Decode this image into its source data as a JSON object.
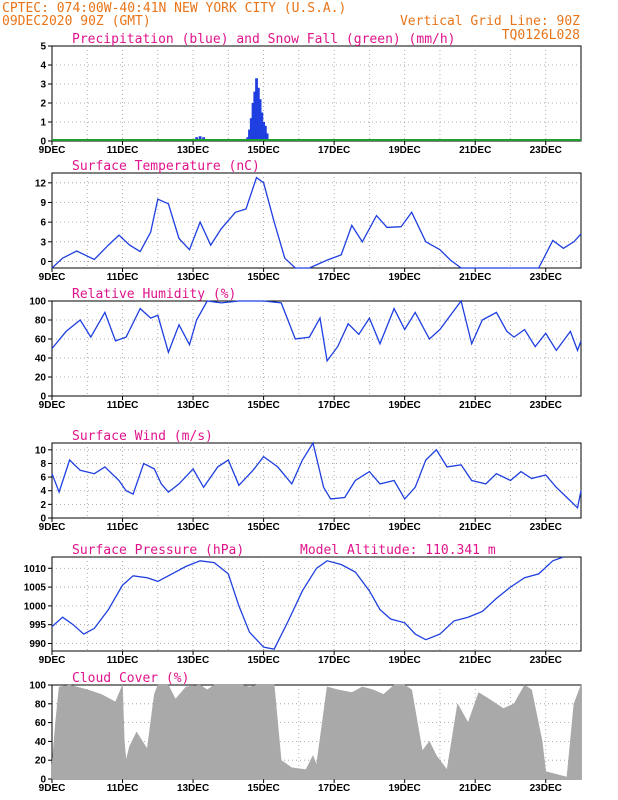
{
  "header": {
    "line1": "CPTEC:  074:00W-40:41N  NEW YORK CITY (U.S.A.)",
    "line2_left": "09DEC2020 90Z (GMT)",
    "line2_right": "Vertical Grid Line: 90Z",
    "line3_right": "TQ0126L028"
  },
  "x_dates": [
    "9DEC",
    "11DEC",
    "13DEC",
    "15DEC",
    "17DEC",
    "19DEC",
    "21DEC",
    "23DEC"
  ],
  "colors": {
    "header": "#e8751a",
    "title": "#e0148c",
    "line": "#1f3fe0",
    "snow": "#1f9f2f",
    "cloud": "#a9a9a9"
  },
  "chart_data": [
    {
      "type": "bar",
      "title": "Precipitation (blue) and Snow Fall (green) (mm/h)",
      "ylim": [
        0,
        5
      ],
      "yticks": [
        "0",
        "1",
        "2",
        "3",
        "4",
        "5"
      ],
      "x_start": "2020-12-09",
      "x_end": "2020-12-24",
      "series": [
        {
          "name": "Precipitation (blue)",
          "values": [
            [
              13.0,
              0.1
            ],
            [
              13.1,
              0.2
            ],
            [
              13.2,
              0.25
            ],
            [
              13.3,
              0.2
            ],
            [
              13.4,
              0.1
            ],
            [
              14.55,
              0.2
            ],
            [
              14.6,
              0.6
            ],
            [
              14.65,
              1.2
            ],
            [
              14.7,
              2.0
            ],
            [
              14.75,
              2.6
            ],
            [
              14.8,
              3.3
            ],
            [
              14.85,
              2.8
            ],
            [
              14.9,
              2.2
            ],
            [
              14.95,
              1.5
            ],
            [
              15.0,
              1.0
            ],
            [
              15.05,
              0.8
            ],
            [
              15.1,
              0.4
            ],
            [
              18.2,
              0.05
            ]
          ]
        }
      ]
    },
    {
      "type": "line",
      "title": "Surface Temperature (nC)",
      "ylim": [
        -1,
        13.5
      ],
      "yticks": [
        "0",
        "3",
        "6",
        "9",
        "12"
      ],
      "series": [
        {
          "values": [
            [
              9.0,
              -1.5
            ],
            [
              9.3,
              0.5
            ],
            [
              9.7,
              1.6
            ],
            [
              10.2,
              0.3
            ],
            [
              10.6,
              2.5
            ],
            [
              10.9,
              4.0
            ],
            [
              11.2,
              2.5
            ],
            [
              11.5,
              1.5
            ],
            [
              11.8,
              4.5
            ],
            [
              12.0,
              9.5
            ],
            [
              12.3,
              8.8
            ],
            [
              12.6,
              3.5
            ],
            [
              12.9,
              1.8
            ],
            [
              13.2,
              6.0
            ],
            [
              13.5,
              2.5
            ],
            [
              13.8,
              5.0
            ],
            [
              14.2,
              7.5
            ],
            [
              14.5,
              8.0
            ],
            [
              14.8,
              12.8
            ],
            [
              15.0,
              12.0
            ],
            [
              15.3,
              6.0
            ],
            [
              15.6,
              0.5
            ],
            [
              15.9,
              -1.5
            ],
            [
              16.3,
              -1.0
            ],
            [
              16.8,
              0.2
            ],
            [
              17.2,
              1.0
            ],
            [
              17.5,
              5.5
            ],
            [
              17.8,
              3.0
            ],
            [
              18.2,
              7.0
            ],
            [
              18.5,
              5.2
            ],
            [
              18.9,
              5.3
            ],
            [
              19.2,
              7.5
            ],
            [
              19.6,
              3.0
            ],
            [
              20.0,
              1.8
            ],
            [
              20.3,
              0.2
            ],
            [
              20.6,
              -1.0
            ],
            [
              21.0,
              -1.6
            ],
            [
              22.4,
              -1.6
            ],
            [
              22.8,
              -1.0
            ],
            [
              23.2,
              3.2
            ],
            [
              23.5,
              2.0
            ],
            [
              23.8,
              3.0
            ],
            [
              24.0,
              4.2
            ]
          ]
        }
      ]
    },
    {
      "type": "line",
      "title": "Relative Humidity (%)",
      "ylim": [
        0,
        100
      ],
      "yticks": [
        "0",
        "20",
        "40",
        "60",
        "80",
        "100"
      ],
      "series": [
        {
          "values": [
            [
              9.0,
              50
            ],
            [
              9.4,
              68
            ],
            [
              9.8,
              80
            ],
            [
              10.1,
              62
            ],
            [
              10.5,
              88
            ],
            [
              10.8,
              58
            ],
            [
              11.1,
              62
            ],
            [
              11.5,
              92
            ],
            [
              11.8,
              82
            ],
            [
              12.0,
              85
            ],
            [
              12.3,
              46
            ],
            [
              12.6,
              75
            ],
            [
              12.9,
              54
            ],
            [
              13.1,
              80
            ],
            [
              13.4,
              100
            ],
            [
              13.8,
              98
            ],
            [
              14.3,
              100
            ],
            [
              15.0,
              100
            ],
            [
              15.5,
              98
            ],
            [
              15.9,
              60
            ],
            [
              16.3,
              62
            ],
            [
              16.6,
              82
            ],
            [
              16.8,
              37
            ],
            [
              17.1,
              52
            ],
            [
              17.4,
              76
            ],
            [
              17.7,
              65
            ],
            [
              18.0,
              82
            ],
            [
              18.3,
              55
            ],
            [
              18.7,
              92
            ],
            [
              19.0,
              70
            ],
            [
              19.3,
              88
            ],
            [
              19.7,
              60
            ],
            [
              20.0,
              70
            ],
            [
              20.4,
              90
            ],
            [
              20.6,
              100
            ],
            [
              20.9,
              55
            ],
            [
              21.2,
              80
            ],
            [
              21.6,
              88
            ],
            [
              21.9,
              68
            ],
            [
              22.1,
              62
            ],
            [
              22.4,
              70
            ],
            [
              22.7,
              52
            ],
            [
              23.0,
              66
            ],
            [
              23.3,
              48
            ],
            [
              23.7,
              68
            ],
            [
              23.9,
              48
            ],
            [
              24.0,
              58
            ]
          ]
        }
      ]
    },
    {
      "type": "line",
      "title": "Surface Wind (m/s)",
      "ylim": [
        0,
        11
      ],
      "yticks": [
        "0",
        "2",
        "4",
        "6",
        "8",
        "10"
      ],
      "series": [
        {
          "values": [
            [
              9.0,
              6.5
            ],
            [
              9.2,
              3.8
            ],
            [
              9.5,
              8.5
            ],
            [
              9.8,
              7.0
            ],
            [
              10.2,
              6.5
            ],
            [
              10.5,
              7.5
            ],
            [
              10.9,
              5.5
            ],
            [
              11.1,
              4.0
            ],
            [
              11.3,
              3.5
            ],
            [
              11.6,
              8.0
            ],
            [
              11.9,
              7.2
            ],
            [
              12.1,
              5.0
            ],
            [
              12.3,
              3.8
            ],
            [
              12.6,
              5.0
            ],
            [
              13.0,
              7.2
            ],
            [
              13.3,
              4.5
            ],
            [
              13.7,
              7.5
            ],
            [
              14.0,
              8.5
            ],
            [
              14.3,
              4.8
            ],
            [
              14.7,
              7.0
            ],
            [
              15.0,
              9.0
            ],
            [
              15.4,
              7.5
            ],
            [
              15.8,
              5.0
            ],
            [
              16.1,
              8.5
            ],
            [
              16.4,
              11.0
            ],
            [
              16.7,
              4.5
            ],
            [
              16.9,
              2.8
            ],
            [
              17.3,
              3.0
            ],
            [
              17.6,
              5.5
            ],
            [
              18.0,
              6.8
            ],
            [
              18.3,
              5.0
            ],
            [
              18.7,
              5.5
            ],
            [
              19.0,
              2.8
            ],
            [
              19.3,
              4.5
            ],
            [
              19.6,
              8.5
            ],
            [
              19.9,
              10.0
            ],
            [
              20.2,
              7.5
            ],
            [
              20.6,
              7.8
            ],
            [
              20.9,
              5.5
            ],
            [
              21.3,
              5.0
            ],
            [
              21.6,
              6.5
            ],
            [
              22.0,
              5.5
            ],
            [
              22.3,
              6.8
            ],
            [
              22.6,
              5.8
            ],
            [
              23.0,
              6.3
            ],
            [
              23.3,
              4.5
            ],
            [
              23.6,
              3.0
            ],
            [
              23.9,
              1.5
            ],
            [
              24.0,
              4.0
            ]
          ]
        }
      ]
    },
    {
      "type": "line",
      "title": "Surface Pressure (hPa)",
      "annotation": "Model Altitude: 110.341 m",
      "ylim": [
        988,
        1013
      ],
      "yticks": [
        "990",
        "995",
        "1000",
        "1005",
        "1010"
      ],
      "series": [
        {
          "values": [
            [
              9.0,
              994.5
            ],
            [
              9.3,
              997.0
            ],
            [
              9.6,
              995.0
            ],
            [
              9.9,
              992.5
            ],
            [
              10.2,
              994.0
            ],
            [
              10.6,
              999.0
            ],
            [
              11.0,
              1005.5
            ],
            [
              11.3,
              1008.0
            ],
            [
              11.7,
              1007.5
            ],
            [
              12.0,
              1006.5
            ],
            [
              12.4,
              1008.5
            ],
            [
              12.8,
              1010.5
            ],
            [
              13.2,
              1012.0
            ],
            [
              13.6,
              1011.5
            ],
            [
              14.0,
              1008.5
            ],
            [
              14.3,
              1000.0
            ],
            [
              14.6,
              993.0
            ],
            [
              15.0,
              989.0
            ],
            [
              15.3,
              988.5
            ],
            [
              15.7,
              996.0
            ],
            [
              16.1,
              1004.0
            ],
            [
              16.5,
              1010.0
            ],
            [
              16.8,
              1012.0
            ],
            [
              17.2,
              1011.0
            ],
            [
              17.6,
              1009.0
            ],
            [
              18.0,
              1004.0
            ],
            [
              18.3,
              999.0
            ],
            [
              18.6,
              996.5
            ],
            [
              19.0,
              995.5
            ],
            [
              19.3,
              992.5
            ],
            [
              19.6,
              991.0
            ],
            [
              20.0,
              992.5
            ],
            [
              20.4,
              996.0
            ],
            [
              20.8,
              997.0
            ],
            [
              21.2,
              998.5
            ],
            [
              21.6,
              1002.0
            ],
            [
              22.0,
              1005.0
            ],
            [
              22.4,
              1007.5
            ],
            [
              22.8,
              1008.5
            ],
            [
              23.2,
              1012.0
            ],
            [
              23.5,
              1014.0
            ]
          ]
        }
      ]
    },
    {
      "type": "area",
      "title": "Cloud Cover (%)",
      "ylim": [
        0,
        100
      ],
      "yticks": [
        "0",
        "20",
        "40",
        "60",
        "80",
        "100"
      ],
      "series": [
        {
          "values": [
            [
              9.0,
              15
            ],
            [
              9.1,
              60
            ],
            [
              9.2,
              98
            ],
            [
              9.5,
              100
            ],
            [
              10.0,
              95
            ],
            [
              10.4,
              90
            ],
            [
              10.8,
              82
            ],
            [
              11.0,
              100
            ],
            [
              11.05,
              40
            ],
            [
              11.1,
              20
            ],
            [
              11.2,
              35
            ],
            [
              11.4,
              50
            ],
            [
              11.7,
              32
            ],
            [
              11.9,
              90
            ],
            [
              12.0,
              100
            ],
            [
              12.3,
              100
            ],
            [
              12.5,
              85
            ],
            [
              12.8,
              98
            ],
            [
              13.2,
              100
            ],
            [
              13.4,
              95
            ],
            [
              13.6,
              100
            ],
            [
              14.1,
              100
            ],
            [
              14.4,
              100
            ],
            [
              14.6,
              98
            ],
            [
              14.8,
              100
            ],
            [
              15.3,
              100
            ],
            [
              15.5,
              20
            ],
            [
              15.8,
              12
            ],
            [
              16.2,
              10
            ],
            [
              16.4,
              25
            ],
            [
              16.5,
              15
            ],
            [
              16.8,
              98
            ],
            [
              17.1,
              95
            ],
            [
              17.5,
              92
            ],
            [
              17.8,
              98
            ],
            [
              18.1,
              95
            ],
            [
              18.4,
              90
            ],
            [
              18.7,
              100
            ],
            [
              19.0,
              100
            ],
            [
              19.2,
              95
            ],
            [
              19.5,
              30
            ],
            [
              19.7,
              40
            ],
            [
              19.9,
              25
            ],
            [
              20.2,
              10
            ],
            [
              20.5,
              80
            ],
            [
              20.8,
              60
            ],
            [
              21.1,
              92
            ],
            [
              21.4,
              85
            ],
            [
              21.8,
              75
            ],
            [
              22.1,
              80
            ],
            [
              22.4,
              100
            ],
            [
              22.6,
              95
            ],
            [
              22.9,
              40
            ],
            [
              23.0,
              8
            ],
            [
              23.3,
              5
            ],
            [
              23.6,
              2
            ],
            [
              23.8,
              80
            ],
            [
              24.0,
              100
            ]
          ]
        }
      ]
    }
  ]
}
